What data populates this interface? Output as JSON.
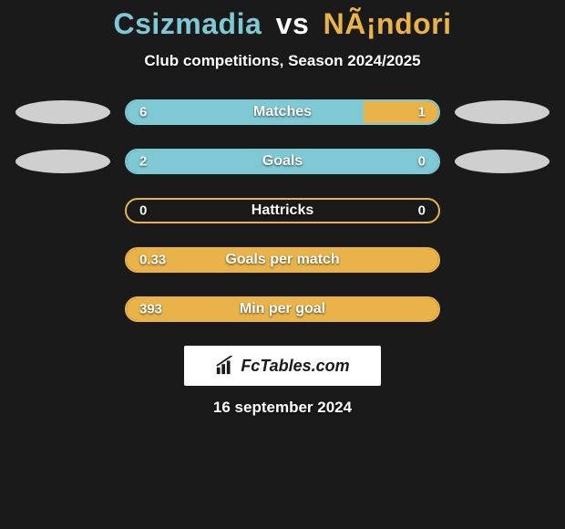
{
  "title": {
    "player1": "Csizmadia",
    "vs": "vs",
    "player2": "NÃ¡ndori"
  },
  "subtitle": "Club competitions, Season 2024/2025",
  "colors": {
    "player1": "#7ec9d4",
    "player2": "#e9b34a",
    "background": "#1a1a1a",
    "ellipse": "#cfcfcf",
    "text": "#ffffff"
  },
  "stats": [
    {
      "label": "Matches",
      "left_value": "6",
      "right_value": "1",
      "left_pct": 76,
      "right_pct": 24,
      "border_color": "#7ec9d4",
      "show_left_ellipse": true,
      "show_right_ellipse": true
    },
    {
      "label": "Goals",
      "left_value": "2",
      "right_value": "0",
      "left_pct": 100,
      "right_pct": 0,
      "border_color": "#7ec9d4",
      "show_left_ellipse": true,
      "show_right_ellipse": true
    },
    {
      "label": "Hattricks",
      "left_value": "0",
      "right_value": "0",
      "left_pct": 0,
      "right_pct": 0,
      "border_color": "#e9b34a",
      "show_left_ellipse": false,
      "show_right_ellipse": false
    },
    {
      "label": "Goals per match",
      "left_value": "0.33",
      "right_value": "",
      "left_pct": 0,
      "right_pct": 100,
      "border_color": "#e9b34a",
      "show_left_ellipse": false,
      "show_right_ellipse": false
    },
    {
      "label": "Min per goal",
      "left_value": "393",
      "right_value": "",
      "left_pct": 0,
      "right_pct": 100,
      "border_color": "#e9b34a",
      "show_left_ellipse": false,
      "show_right_ellipse": false
    }
  ],
  "logo_text": "FcTables.com",
  "date": "16 september 2024"
}
